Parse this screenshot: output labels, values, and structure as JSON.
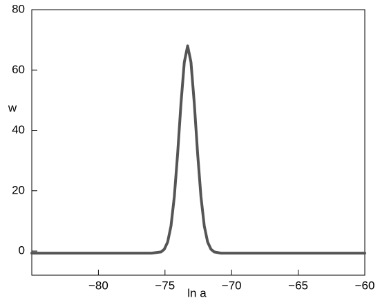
{
  "chart_data": {
    "type": "line",
    "x_label": "ln a",
    "y_label": "w",
    "xlim": [
      -85,
      -60
    ],
    "ylim": [
      -8,
      80
    ],
    "xticks": [
      {
        "value": -80,
        "label": "−80"
      },
      {
        "value": -75,
        "label": "−75"
      },
      {
        "value": -70,
        "label": "−70"
      },
      {
        "value": -65,
        "label": "−65"
      },
      {
        "value": -60,
        "label": "−60"
      }
    ],
    "yticks": [
      0,
      20,
      40,
      60,
      80
    ],
    "series": [
      {
        "color": "#555555",
        "x": [
          -85,
          -77,
          -76,
          -75.3,
          -75.05,
          -74.8,
          -74.55,
          -74.3,
          -74.05,
          -73.8,
          -73.55,
          -73.3,
          -73.05,
          -72.8,
          -72.55,
          -72.3,
          -72.05,
          -71.8,
          -71.55,
          -71.3,
          -70.8,
          -70,
          -60
        ],
        "values": [
          -0.7,
          -0.7,
          -0.7,
          -0.3,
          0.6,
          3.0,
          8.3,
          18.0,
          32.3,
          48.9,
          62.6,
          68.0,
          62.6,
          48.9,
          32.3,
          18.0,
          8.3,
          3.0,
          0.6,
          -0.3,
          -0.7,
          -0.7,
          -0.7
        ]
      }
    ]
  }
}
